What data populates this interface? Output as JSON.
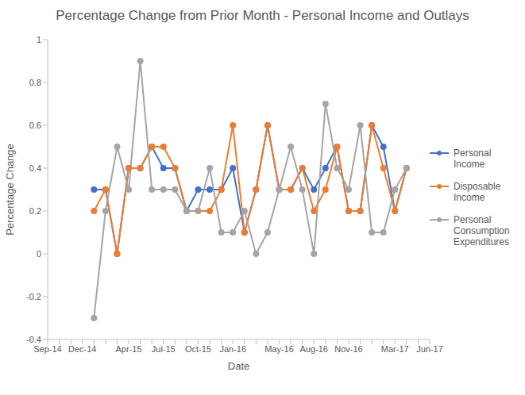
{
  "chart_data": {
    "type": "line",
    "title": "Percentage Change from Prior Month - Personal Income and Outlays",
    "x_label": "Date",
    "y_label": "Percentage Change",
    "categories": [
      "Sep-14",
      null,
      null,
      "Dec-14",
      null,
      null,
      null,
      "Apr-15",
      null,
      null,
      "Jul-15",
      null,
      null,
      "Oct-15",
      null,
      null,
      "Jan-16",
      null,
      null,
      null,
      "May-16",
      null,
      null,
      "Aug-16",
      null,
      null,
      "Nov-16",
      null,
      null,
      null,
      "Mar-17",
      null,
      null,
      "Jun-17"
    ],
    "series": [
      {
        "name": "Personal Income",
        "color": "#4472c4",
        "values": [
          null,
          null,
          null,
          null,
          0.3,
          0.3,
          0.0,
          0.4,
          0.4,
          0.5,
          0.4,
          0.4,
          0.2,
          0.3,
          0.3,
          0.3,
          0.4,
          0.1,
          0.3,
          0.6,
          0.3,
          0.3,
          0.4,
          0.3,
          0.4,
          0.5,
          0.2,
          0.2,
          0.6,
          0.5,
          0.2,
          0.4,
          null,
          null
        ]
      },
      {
        "name": "Disposable Income",
        "color": "#ed7d31",
        "values": [
          null,
          null,
          null,
          null,
          0.2,
          0.3,
          0.0,
          0.4,
          0.4,
          0.5,
          0.5,
          0.4,
          0.2,
          0.2,
          0.2,
          0.3,
          0.6,
          0.1,
          0.3,
          0.6,
          0.3,
          0.3,
          0.4,
          0.2,
          0.3,
          0.5,
          0.2,
          0.2,
          0.6,
          0.4,
          0.2,
          0.4,
          null,
          null
        ]
      },
      {
        "name": "Personal Consumption Expenditures",
        "color": "#a5a5a5",
        "values": [
          null,
          null,
          null,
          null,
          -0.3,
          0.2,
          0.5,
          0.3,
          0.9,
          0.3,
          0.3,
          0.3,
          0.2,
          0.2,
          0.4,
          0.1,
          0.1,
          0.2,
          0.0,
          0.1,
          0.3,
          0.5,
          0.3,
          0.0,
          0.7,
          0.4,
          0.3,
          0.6,
          0.1,
          0.1,
          0.3,
          0.4,
          null,
          null
        ]
      }
    ],
    "ylim": [
      -0.4,
      1
    ],
    "yticks": [
      -0.4,
      -0.2,
      0,
      0.2,
      0.4,
      0.6,
      0.8,
      1
    ],
    "grid": false,
    "legend": "right",
    "marker": "circle"
  }
}
